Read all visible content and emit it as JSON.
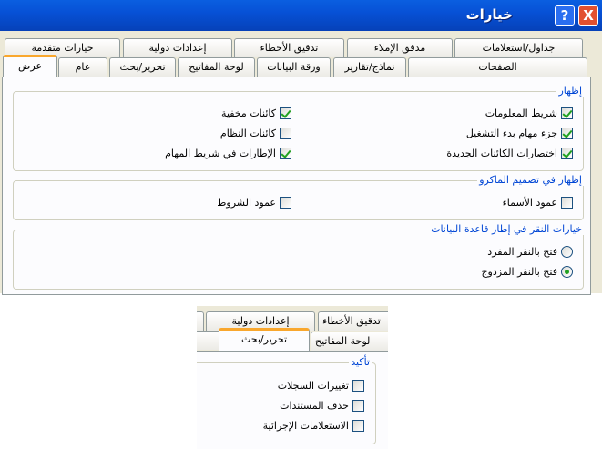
{
  "window": {
    "title": "خيارات",
    "help": "?",
    "close": "X"
  },
  "tabs_row1": [
    "خيارات متقدمة",
    "إعدادات دولية",
    "تدقيق الأخطاء",
    "مدقق الإملاء",
    "جداول/استعلامات"
  ],
  "tabs_row2": [
    "عرض",
    "عام",
    "تحرير/بحث",
    "لوحة المفاتيح",
    "ورقة البيانات",
    "نماذج/تقارير",
    "الصفحات"
  ],
  "selected_tab": "عرض",
  "show": {
    "legend": "إظهار",
    "items": [
      {
        "label": "شريط المعلومات",
        "checked": true
      },
      {
        "label": "جزء مهام بدء التشغيل",
        "checked": true
      },
      {
        "label": "اختصارات الكائنات الجديدة",
        "checked": true
      },
      {
        "label": "كائنات مخفية",
        "checked": true
      },
      {
        "label": "كائنات النظام",
        "checked": false
      },
      {
        "label": "الإطارات في شريط المهام",
        "checked": true
      }
    ]
  },
  "macro": {
    "legend": "إظهار في تصميم الماكرو",
    "items": [
      {
        "label": "عمود الأسماء",
        "checked": false
      },
      {
        "label": "عمود الشروط",
        "checked": false
      }
    ]
  },
  "click": {
    "legend": "خيارات النقر في إطار قاعدة البيانات",
    "options": [
      {
        "label": "فتح بالنقر المفرد",
        "selected": false
      },
      {
        "label": "فتح بالنقر المزدوج",
        "selected": true
      }
    ]
  },
  "inset": {
    "tabs_row1": [
      "إعدادات دولية",
      "تدقيق الأخطاء"
    ],
    "tabs_row2": [
      "تحرير/بحث",
      "لوحة المفاتيح"
    ],
    "selected_tab": "تحرير/بحث",
    "confirm": {
      "legend": "تأكيد",
      "items": [
        {
          "label": "تغييرات السجلات",
          "checked": false
        },
        {
          "label": "حذف المستندات",
          "checked": false
        },
        {
          "label": "الاستعلامات الإجرائية",
          "checked": false
        }
      ]
    }
  },
  "colors": {
    "titlebar": "#0751d6",
    "legend": "#0046d5",
    "tab_highlight": "#f9a72d",
    "check": "#21a121"
  }
}
